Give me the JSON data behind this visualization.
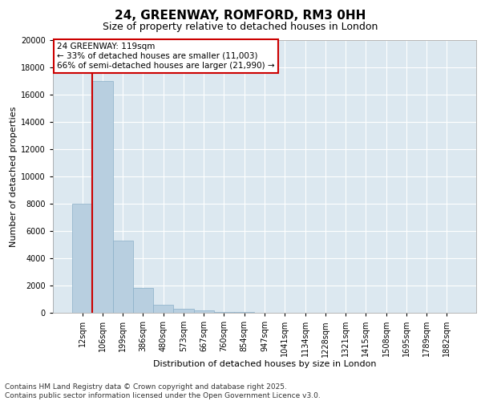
{
  "title": "24, GREENWAY, ROMFORD, RM3 0HH",
  "subtitle": "Size of property relative to detached houses in London",
  "xlabel": "Distribution of detached houses by size in London",
  "ylabel": "Number of detached properties",
  "footer_line1": "Contains HM Land Registry data © Crown copyright and database right 2025.",
  "footer_line2": "Contains public sector information licensed under the Open Government Licence v3.0.",
  "annotation_title": "24 GREENWAY: 119sqm",
  "annotation_line1": "← 33% of detached houses are smaller (11,003)",
  "annotation_line2": "66% of semi-detached houses are larger (21,990) →",
  "property_bin_index": 0.5,
  "bar_color": "#b8cfe0",
  "bar_edgecolor": "#8aafc8",
  "vline_color": "#cc0000",
  "annotation_box_edgecolor": "#cc0000",
  "annotation_bg": "#ffffff",
  "categories": [
    "12sqm",
    "106sqm",
    "199sqm",
    "386sqm",
    "480sqm",
    "573sqm",
    "667sqm",
    "760sqm",
    "854sqm",
    "947sqm",
    "1041sqm",
    "1134sqm",
    "1228sqm",
    "1321sqm",
    "1415sqm",
    "1508sqm",
    "1695sqm",
    "1789sqm",
    "1882sqm"
  ],
  "values": [
    8000,
    17000,
    5300,
    1800,
    600,
    300,
    150,
    80,
    30,
    10,
    5,
    3,
    2,
    1,
    1,
    1,
    1,
    1,
    1
  ],
  "ylim": [
    0,
    20000
  ],
  "yticks": [
    0,
    2000,
    4000,
    6000,
    8000,
    10000,
    12000,
    14000,
    16000,
    18000,
    20000
  ],
  "background_color": "#ffffff",
  "plot_bg_color": "#dce8f0",
  "grid_color": "#ffffff",
  "title_fontsize": 11,
  "subtitle_fontsize": 9,
  "axis_label_fontsize": 8,
  "tick_fontsize": 7,
  "footer_fontsize": 6.5,
  "annotation_fontsize": 7.5
}
